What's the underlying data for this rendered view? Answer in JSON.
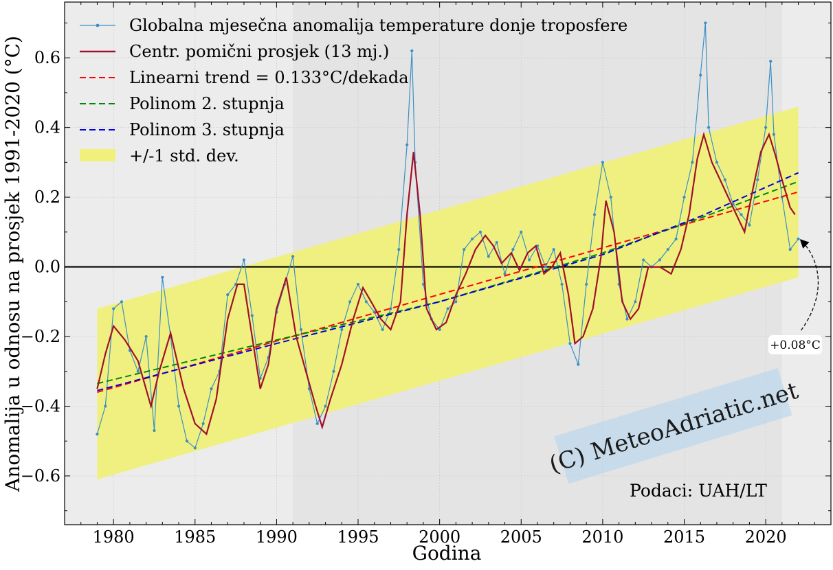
{
  "chart_data": {
    "type": "line",
    "xlabel": "Godina",
    "ylabel": "Anomalija u odnosu na prosjek 1991-2020 (°C)",
    "xlim": [
      1977,
      2024
    ],
    "ylim": [
      -0.74,
      0.76
    ],
    "x_ticks": [
      1980,
      1985,
      1990,
      1995,
      2000,
      2005,
      2010,
      2015,
      2020
    ],
    "y_ticks": [
      -0.6,
      -0.4,
      -0.2,
      0.0,
      0.2,
      0.4,
      0.6
    ],
    "y_tick_labels": [
      "−0.6",
      "−0.4",
      "−0.2",
      "0.0",
      "0.2",
      "0.4",
      "0.6"
    ],
    "grid": true,
    "baseline_period_shaded": [
      1991,
      2021
    ],
    "legend_position": "upper-left",
    "legend": [
      "Globalna mjesečna anomalija temperature donje troposfere",
      "Centr. pomični prosjek (13 mj.)",
      "Linearni trend = 0.133°C/dekada",
      "Polinom 2. stupnja",
      "Polinom 3. stupnja",
      "+/-1 std. dev."
    ],
    "colors": {
      "monthly": "#3a8fc4",
      "moving_avg": "#a0102a",
      "linear": "#ff0000",
      "poly2": "#008800",
      "poly3": "#0000dd",
      "std_band": "#f0f07a",
      "zero_line": "#000000",
      "plot_bg": "#ececec",
      "baseline_bg": "#e4e4e4"
    },
    "monthly_series": {
      "name": "Globalna mjesečna anomalija temperature donje troposfere",
      "x": [
        1979.0,
        1979.5,
        1980.0,
        1980.5,
        1981.0,
        1981.5,
        1982.0,
        1982.5,
        1983.0,
        1983.5,
        1984.0,
        1984.5,
        1985.0,
        1985.5,
        1986.0,
        1986.5,
        1987.0,
        1987.5,
        1988.0,
        1988.5,
        1989.0,
        1989.5,
        1990.0,
        1990.5,
        1991.0,
        1991.5,
        1992.0,
        1992.5,
        1993.0,
        1993.5,
        1994.0,
        1994.5,
        1995.0,
        1995.5,
        1996.0,
        1996.5,
        1997.0,
        1997.5,
        1998.0,
        1998.3,
        1998.5,
        1999.0,
        1999.5,
        2000.0,
        2000.5,
        2001.0,
        2001.5,
        2002.0,
        2002.5,
        2003.0,
        2003.5,
        2004.0,
        2004.5,
        2005.0,
        2005.5,
        2006.0,
        2006.5,
        2007.0,
        2007.5,
        2008.0,
        2008.5,
        2009.0,
        2009.5,
        2010.0,
        2010.5,
        2011.0,
        2011.5,
        2012.0,
        2012.5,
        2013.0,
        2013.5,
        2014.0,
        2014.5,
        2015.0,
        2015.5,
        2016.0,
        2016.3,
        2016.5,
        2017.0,
        2017.5,
        2018.0,
        2018.5,
        2019.0,
        2019.5,
        2020.0,
        2020.3,
        2020.5,
        2021.0,
        2021.5,
        2022.0
      ],
      "values": [
        -0.48,
        -0.4,
        -0.12,
        -0.1,
        -0.24,
        -0.3,
        -0.2,
        -0.47,
        -0.03,
        -0.2,
        -0.4,
        -0.5,
        -0.52,
        -0.45,
        -0.35,
        -0.3,
        -0.08,
        -0.05,
        0.02,
        -0.14,
        -0.32,
        -0.26,
        -0.13,
        -0.05,
        0.03,
        -0.18,
        -0.35,
        -0.45,
        -0.4,
        -0.3,
        -0.18,
        -0.1,
        -0.05,
        -0.1,
        -0.13,
        -0.18,
        -0.12,
        0.05,
        0.35,
        0.62,
        0.3,
        -0.05,
        -0.15,
        -0.18,
        -0.12,
        -0.1,
        0.05,
        0.08,
        0.1,
        0.03,
        0.07,
        -0.02,
        0.05,
        0.1,
        0.02,
        0.06,
        0.0,
        0.05,
        -0.05,
        -0.22,
        -0.28,
        -0.05,
        0.15,
        0.3,
        0.2,
        -0.05,
        -0.15,
        -0.1,
        0.02,
        0.0,
        0.02,
        0.05,
        0.08,
        0.2,
        0.3,
        0.55,
        0.7,
        0.4,
        0.3,
        0.25,
        0.18,
        0.15,
        0.12,
        0.25,
        0.4,
        0.59,
        0.38,
        0.2,
        0.05,
        0.08
      ]
    },
    "moving_average": {
      "name": "Centr. pomični prosjek (13 mj.)",
      "x": [
        1979.0,
        1979.5,
        1980.0,
        1980.7,
        1981.5,
        1982.3,
        1982.8,
        1983.5,
        1984.3,
        1985.0,
        1985.7,
        1986.3,
        1987.0,
        1987.6,
        1988.0,
        1988.5,
        1989.0,
        1989.5,
        1990.0,
        1990.6,
        1991.2,
        1991.8,
        1992.4,
        1992.8,
        1993.3,
        1994.0,
        1994.7,
        1995.3,
        1995.8,
        1996.4,
        1997.0,
        1997.6,
        1998.0,
        1998.4,
        1998.8,
        1999.2,
        1999.8,
        2000.4,
        2001.0,
        2001.6,
        2002.2,
        2002.8,
        2003.3,
        2003.8,
        2004.4,
        2004.9,
        2005.4,
        2005.9,
        2006.4,
        2006.9,
        2007.4,
        2007.9,
        2008.3,
        2008.8,
        2009.4,
        2009.9,
        2010.2,
        2010.7,
        2011.2,
        2011.7,
        2012.2,
        2012.8,
        2013.5,
        2014.2,
        2014.8,
        2015.3,
        2015.8,
        2016.2,
        2016.7,
        2017.2,
        2017.7,
        2018.2,
        2018.7,
        2019.2,
        2019.7,
        2020.2,
        2020.6,
        2021.0,
        2021.5,
        2021.8
      ],
      "values": [
        -0.35,
        -0.25,
        -0.17,
        -0.21,
        -0.27,
        -0.4,
        -0.3,
        -0.19,
        -0.35,
        -0.45,
        -0.48,
        -0.38,
        -0.15,
        -0.05,
        -0.05,
        -0.2,
        -0.35,
        -0.28,
        -0.12,
        -0.03,
        -0.2,
        -0.3,
        -0.4,
        -0.46,
        -0.38,
        -0.28,
        -0.15,
        -0.06,
        -0.1,
        -0.15,
        -0.18,
        -0.1,
        0.15,
        0.33,
        0.15,
        -0.12,
        -0.18,
        -0.16,
        -0.08,
        -0.02,
        0.05,
        0.09,
        0.06,
        0.01,
        0.04,
        -0.01,
        0.04,
        0.06,
        -0.02,
        0.0,
        0.04,
        -0.08,
        -0.22,
        -0.2,
        -0.12,
        0.03,
        0.19,
        0.1,
        -0.1,
        -0.15,
        -0.12,
        0.0,
        0.0,
        -0.02,
        0.05,
        0.15,
        0.31,
        0.38,
        0.3,
        0.25,
        0.2,
        0.15,
        0.1,
        0.22,
        0.33,
        0.38,
        0.32,
        0.25,
        0.17,
        0.15
      ]
    },
    "linear_trend": {
      "name": "Linearni trend = 0.133°C/dekada",
      "x": [
        1979.0,
        2022.0
      ],
      "values": [
        -0.36,
        0.215
      ]
    },
    "poly2": {
      "name": "Polinom 2. stupnja",
      "x": [
        1979.0,
        1990.0,
        2000.0,
        2010.0,
        2016.0,
        2022.0
      ],
      "values": [
        -0.335,
        -0.21,
        -0.1,
        0.04,
        0.14,
        0.245
      ]
    },
    "poly3": {
      "name": "Polinom 3. stupnja",
      "x": [
        1979.0,
        1990.0,
        2000.0,
        2010.0,
        2016.0,
        2022.0
      ],
      "values": [
        -0.355,
        -0.22,
        -0.1,
        0.035,
        0.145,
        0.27
      ]
    },
    "std_band": {
      "name": "+/-1 std. dev.",
      "x": [
        1979.0,
        2022.0
      ],
      "lower": [
        -0.61,
        -0.03
      ],
      "upper": [
        -0.12,
        0.46
      ]
    },
    "annotation": {
      "text": "+0.08°C",
      "x": 2022.0,
      "y": 0.08
    },
    "source_text": "Podaci:  UAH/LT",
    "watermark": "(C) MeteoAdriatic.net"
  }
}
